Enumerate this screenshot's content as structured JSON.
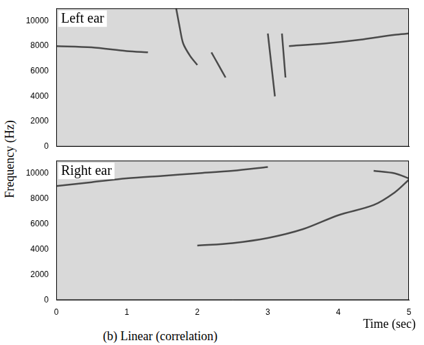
{
  "chart_data": [
    {
      "type": "line",
      "title": "Left ear",
      "grid": false,
      "tick_labels": "y",
      "xlim": [
        0,
        5
      ],
      "xticks": [
        0,
        1,
        2,
        3,
        4,
        5
      ],
      "ylim": [
        0,
        11000
      ],
      "yticks": [
        0,
        2000,
        4000,
        6000,
        8000,
        10000
      ],
      "series": [
        {
          "x": [
            0,
            0.5,
            1,
            1.3
          ],
          "values": [
            8000,
            7900,
            7600,
            7500
          ]
        },
        {
          "x": [
            1.7,
            1.75,
            1.8,
            1.9,
            2.0
          ],
          "values": [
            11000,
            9500,
            8200,
            7200,
            6500
          ]
        },
        {
          "x": [
            2.2,
            2.3,
            2.4
          ],
          "values": [
            7500,
            6500,
            5500
          ]
        },
        {
          "x": [
            3.0,
            3.05,
            3.1
          ],
          "values": [
            9000,
            6500,
            4000
          ]
        },
        {
          "x": [
            3.2,
            3.25
          ],
          "values": [
            9000,
            5500
          ]
        },
        {
          "x": [
            3.3,
            3.8,
            4.3,
            4.8,
            5
          ],
          "values": [
            8000,
            8200,
            8500,
            8900,
            9000
          ]
        }
      ]
    },
    {
      "type": "line",
      "title": "Right ear",
      "grid": false,
      "xlim": [
        0,
        5
      ],
      "xticks": [
        0,
        1,
        2,
        3,
        4,
        5
      ],
      "ylim": [
        0,
        11000
      ],
      "yticks": [
        0,
        2000,
        4000,
        6000,
        8000,
        10000
      ],
      "series": [
        {
          "x": [
            0,
            0.5,
            1,
            1.5,
            2,
            2.5,
            3
          ],
          "values": [
            9000,
            9300,
            9600,
            9800,
            10000,
            10200,
            10500
          ]
        },
        {
          "x": [
            2,
            2.5,
            3,
            3.5,
            4,
            4.5,
            4.8,
            5
          ],
          "values": [
            4300,
            4500,
            4900,
            5600,
            6700,
            7500,
            8500,
            9500
          ]
        },
        {
          "x": [
            4.5,
            4.8,
            5
          ],
          "values": [
            10200,
            10000,
            9600
          ]
        }
      ]
    }
  ],
  "ylabel": "Frequency (Hz)",
  "xlabel": "Time (sec)",
  "caption": "(b) Linear (correlation)"
}
